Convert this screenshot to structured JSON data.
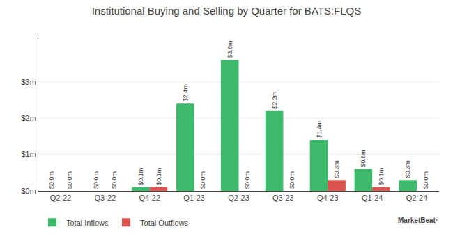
{
  "chart_data": {
    "type": "bar",
    "title": "Institutional Buying and Selling by Quarter for BATS:FLQS",
    "categories": [
      "Q2-22",
      "Q3-22",
      "Q4-22",
      "Q1-23",
      "Q2-23",
      "Q3-23",
      "Q4-23",
      "Q1-24",
      "Q2-24"
    ],
    "series": [
      {
        "name": "Total Inflows",
        "color": "#3cb96a",
        "values": [
          0.0,
          0.0,
          0.1,
          2.4,
          3.6,
          2.2,
          1.4,
          0.6,
          0.3
        ],
        "value_labels": [
          "$0.0m",
          "$0.0m",
          "$0.1m",
          "$2.4m",
          "$3.6m",
          "$2.2m",
          "$1.4m",
          "$0.6m",
          "$0.3m"
        ]
      },
      {
        "name": "Total Outflows",
        "color": "#d9534f",
        "values": [
          0.0,
          0.0,
          0.1,
          0.0,
          0.0,
          0.0,
          0.3,
          0.1,
          0.0
        ],
        "value_labels": [
          "$0.0m",
          "$0.0m",
          "$0.1m",
          "$0.0m",
          "$0.0m",
          "$0.0m",
          "$0.3m",
          "$0.1m",
          "$0.0m"
        ]
      }
    ],
    "ylim": [
      0,
      4.2
    ],
    "yticks": [
      {
        "value": 0,
        "label": "$0m"
      },
      {
        "value": 1,
        "label": "$1m"
      },
      {
        "value": 2,
        "label": "$2m"
      },
      {
        "value": 3,
        "label": "$3m"
      }
    ],
    "grid": true,
    "legend": "lower left",
    "data_labels": true,
    "annotations": [
      "MarketBeat·"
    ]
  }
}
